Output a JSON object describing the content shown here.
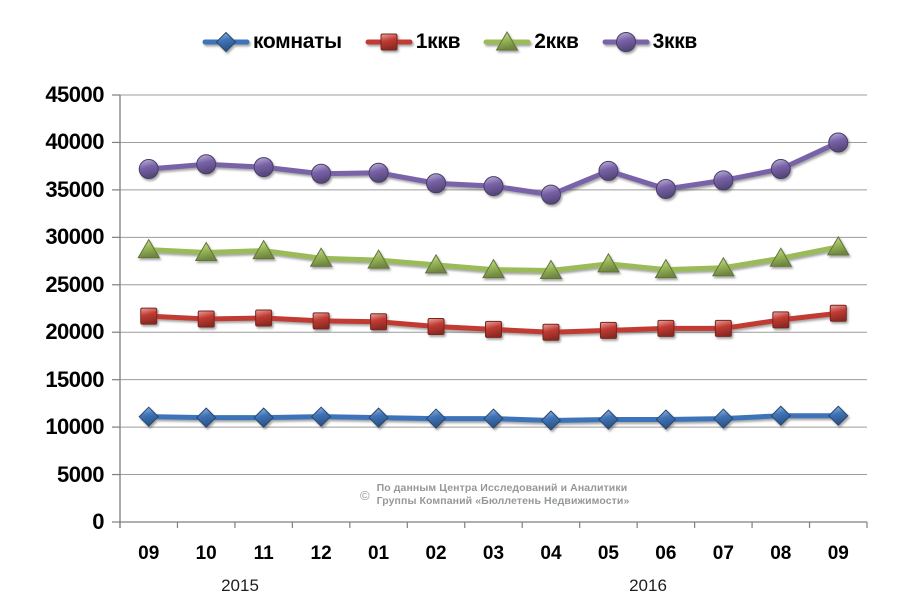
{
  "chart_data": {
    "type": "line",
    "title": "",
    "xlabel": "",
    "ylabel": "",
    "ylim": [
      0,
      45000
    ],
    "y_step": 5000,
    "y_ticks": [
      45000,
      40000,
      35000,
      30000,
      25000,
      20000,
      15000,
      10000,
      5000,
      0
    ],
    "grid": "horizontal",
    "legend_position": "top",
    "x_categories": [
      "09",
      "10",
      "11",
      "12",
      "01",
      "02",
      "03",
      "04",
      "05",
      "06",
      "07",
      "08",
      "09"
    ],
    "x_axis_years": [
      "2015",
      "2016"
    ],
    "series": [
      {
        "name": "комнаты",
        "slug": "komnaty",
        "marker": "diamond",
        "color": "#3E73B8",
        "values": [
          11100,
          11000,
          11000,
          11100,
          11000,
          10900,
          10900,
          10700,
          10800,
          10800,
          10900,
          11200,
          11200
        ]
      },
      {
        "name": "1ккв",
        "slug": "1kkv",
        "marker": "square",
        "color": "#C23B32",
        "values": [
          21700,
          21400,
          21500,
          21200,
          21100,
          20600,
          20300,
          20000,
          20200,
          20400,
          20400,
          21300,
          22000
        ]
      },
      {
        "name": "2ккв",
        "slug": "2kkv",
        "marker": "triangle",
        "color": "#9BBB59",
        "values": [
          28700,
          28400,
          28600,
          27800,
          27600,
          27100,
          26600,
          26500,
          27200,
          26600,
          26800,
          27800,
          29000
        ]
      },
      {
        "name": "3ккв",
        "slug": "3kkv",
        "marker": "circle",
        "color": "#7862A8",
        "values": [
          37200,
          37700,
          37400,
          36700,
          36800,
          35700,
          35400,
          34500,
          37000,
          35100,
          36000,
          37200,
          40000
        ]
      }
    ]
  },
  "watermark": {
    "symbol": "©",
    "line1": "По данным Центра Исследований и Аналитики",
    "line2": "Группы Компаний «Бюллетень Недвижимости»"
  }
}
